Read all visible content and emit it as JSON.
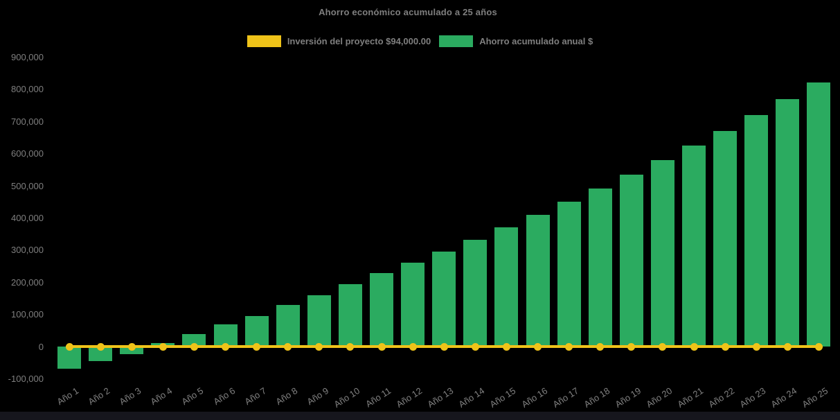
{
  "chart": {
    "title": "Ahorro económico acumulado a 25 años",
    "legend": [
      {
        "key": "inversion",
        "label": "Inversión del proyecto $94,000.00",
        "color": "#efc319"
      },
      {
        "key": "ahorro",
        "label": "Ahorro acumulado anual $",
        "color": "#2bab60"
      }
    ]
  },
  "chart_data": {
    "type": "bar",
    "title": "Ahorro económico acumulado a 25 años",
    "categories": [
      "Año 1",
      "Año 2",
      "Año 3",
      "Año 4",
      "Año 5",
      "Año 6",
      "Año 7",
      "Año 8",
      "Año 9",
      "Año 10",
      "Año 11",
      "Año 12",
      "Año 13",
      "Año 14",
      "Año 15",
      "Año 16",
      "Año 17",
      "Año 18",
      "Año 19",
      "Año 20",
      "Año 21",
      "Año 22",
      "Año 23",
      "Año 24",
      "Año 25"
    ],
    "series": [
      {
        "name": "Ahorro acumulado anual $",
        "type": "bar",
        "color": "#2bab60",
        "values": [
          -70000,
          -46000,
          -24000,
          10000,
          38000,
          68000,
          95000,
          130000,
          160000,
          193000,
          228000,
          261000,
          295000,
          331000,
          371000,
          410000,
          451000,
          492000,
          534000,
          579000,
          626000,
          670000,
          719000,
          770000,
          821000
        ]
      },
      {
        "name": "Inversión del proyecto $94,000.00",
        "type": "line",
        "color": "#efc319",
        "marker": "circle",
        "values": [
          0,
          0,
          0,
          0,
          0,
          0,
          0,
          0,
          0,
          0,
          0,
          0,
          0,
          0,
          0,
          0,
          0,
          0,
          0,
          0,
          0,
          0,
          0,
          0,
          0
        ]
      }
    ],
    "ylim": [
      -100000,
      900000
    ],
    "ytick_step": 100000,
    "ytick_labels": [
      "900,000",
      "800,000",
      "700,000",
      "600,000",
      "500,000",
      "400,000",
      "300,000",
      "200,000",
      "100,000",
      "0",
      "-100,000"
    ],
    "grid": false,
    "legend_position": "top",
    "background": "#000000"
  },
  "colors": {
    "background": "#000000",
    "bar_green": "#2bab60",
    "line_yellow": "#efc319",
    "text_grey": "#7f7f7f",
    "bottom_bar": "#16161d"
  }
}
